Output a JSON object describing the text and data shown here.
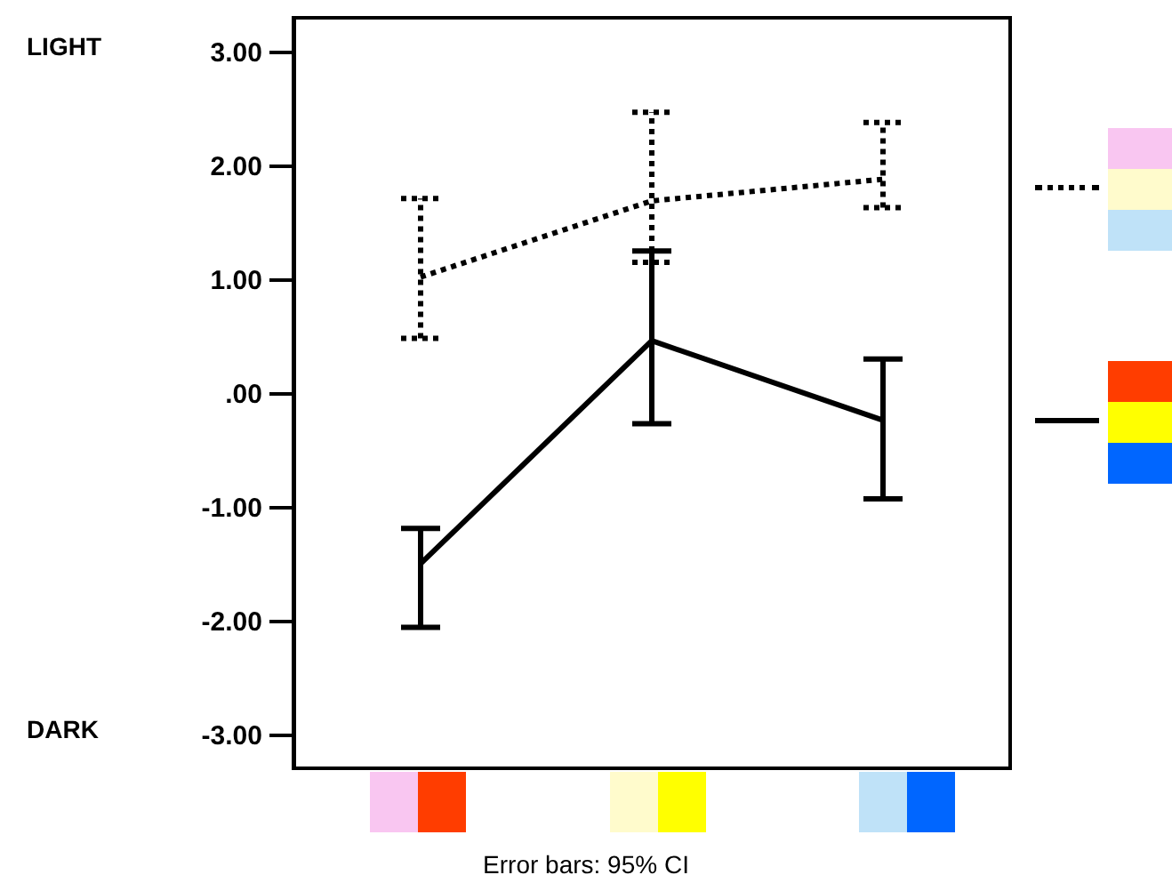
{
  "chart_data": {
    "type": "line",
    "categories": [
      null,
      null,
      null
    ],
    "ylim": [
      -3.3,
      3.3
    ],
    "yticks": [
      {
        "value": 3,
        "label": "3.00"
      },
      {
        "value": 2,
        "label": "2.00"
      },
      {
        "value": 1,
        "label": "1.00"
      },
      {
        "value": 0,
        "label": ".00"
      },
      {
        "value": -1,
        "label": "-1.00"
      },
      {
        "value": -2,
        "label": "-2.00"
      },
      {
        "value": -3,
        "label": "-3.00"
      }
    ],
    "series": [
      {
        "color": "#000000",
        "line_style": "dotted",
        "values": [
          1.02,
          1.69,
          1.88
        ],
        "errors": [
          [
            0.48,
            1.71
          ],
          [
            1.15,
            2.47
          ],
          [
            1.63,
            2.38
          ]
        ]
      },
      {
        "color": "#000000",
        "line_style": "solid",
        "values": [
          -1.5,
          0.46,
          -0.24
        ],
        "errors": [
          [
            -2.06,
            -1.19
          ],
          [
            -0.27,
            1.25
          ],
          [
            -0.93,
            0.3
          ]
        ]
      }
    ],
    "grid": false,
    "marker": "none",
    "tick_labels": "y",
    "annotations": [
      "LIGHT",
      "DARK",
      "Error bars: 95% CI"
    ]
  }
}
